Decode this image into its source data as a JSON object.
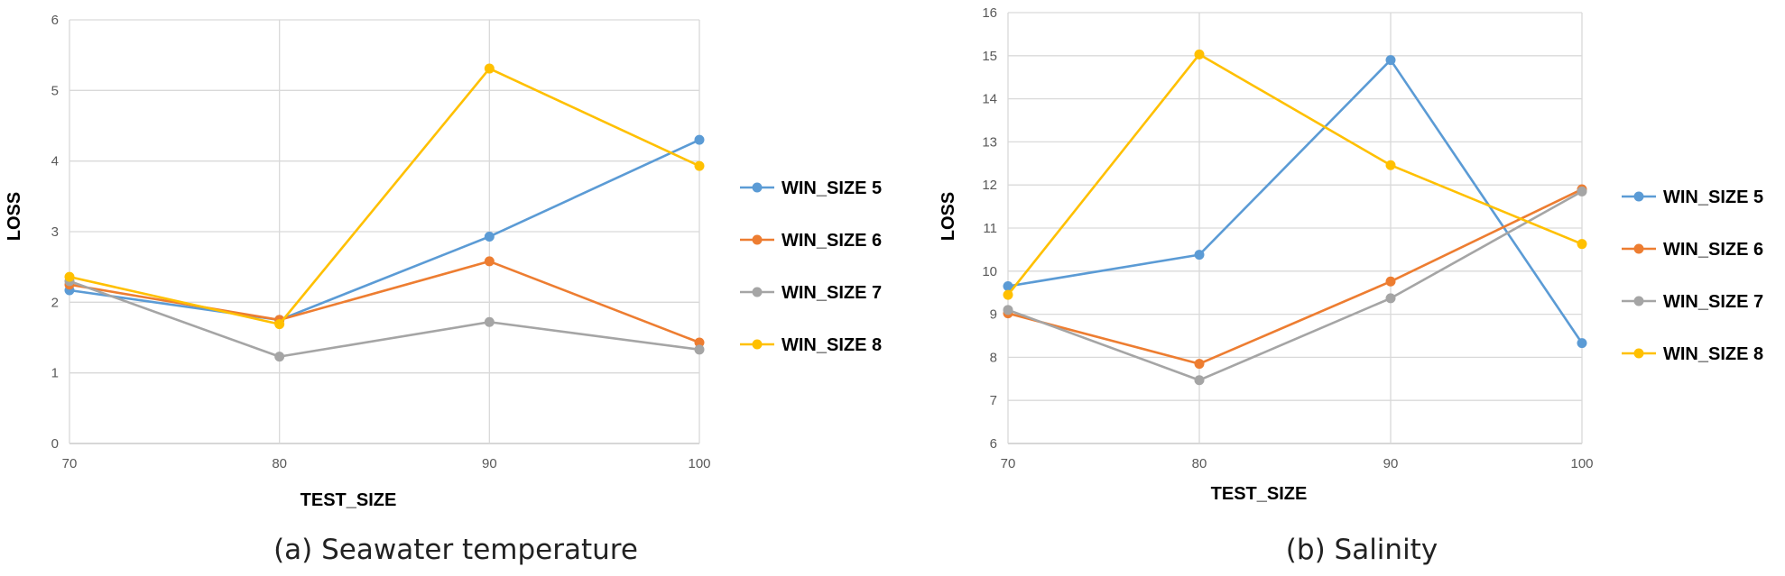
{
  "chart_data": [
    {
      "type": "line",
      "caption": "(a) Seawater temperature",
      "xlabel": "TEST_SIZE",
      "ylabel": "LOSS",
      "x": [
        70,
        80,
        90,
        100
      ],
      "x_tick_labels": [
        "70",
        "80",
        "90",
        "100"
      ],
      "ylim": [
        0,
        6
      ],
      "y_ticks": [
        0,
        1,
        2,
        3,
        4,
        5,
        6
      ],
      "grid": true,
      "legend_position": "right",
      "series": [
        {
          "name": "WIN_SIZE 5",
          "color": "#5B9BD5",
          "values": [
            2.17,
            1.75,
            2.93,
            4.3
          ]
        },
        {
          "name": "WIN_SIZE 6",
          "color": "#ED7D31",
          "values": [
            2.25,
            1.75,
            2.58,
            1.43
          ]
        },
        {
          "name": "WIN_SIZE 7",
          "color": "#A5A5A5",
          "values": [
            2.3,
            1.23,
            1.72,
            1.33
          ]
        },
        {
          "name": "WIN_SIZE 8",
          "color": "#FFC000",
          "values": [
            2.36,
            1.69,
            5.31,
            3.93
          ]
        }
      ]
    },
    {
      "type": "line",
      "caption": "(b) Salinity",
      "xlabel": "TEST_SIZE",
      "ylabel": "LOSS",
      "x": [
        70,
        80,
        90,
        100
      ],
      "x_tick_labels": [
        "70",
        "80",
        "90",
        "100"
      ],
      "ylim": [
        6,
        16
      ],
      "y_ticks": [
        6,
        7,
        8,
        9,
        10,
        11,
        12,
        13,
        14,
        15,
        16
      ],
      "grid": true,
      "legend_position": "right",
      "series": [
        {
          "name": "WIN_SIZE 5",
          "color": "#5B9BD5",
          "values": [
            9.65,
            10.38,
            14.9,
            8.33
          ]
        },
        {
          "name": "WIN_SIZE 6",
          "color": "#ED7D31",
          "values": [
            9.02,
            7.85,
            9.76,
            11.9
          ]
        },
        {
          "name": "WIN_SIZE 7",
          "color": "#A5A5A5",
          "values": [
            9.1,
            7.47,
            9.37,
            11.85
          ]
        },
        {
          "name": "WIN_SIZE 8",
          "color": "#FFC000",
          "values": [
            9.45,
            15.03,
            12.46,
            10.63
          ]
        }
      ]
    }
  ]
}
